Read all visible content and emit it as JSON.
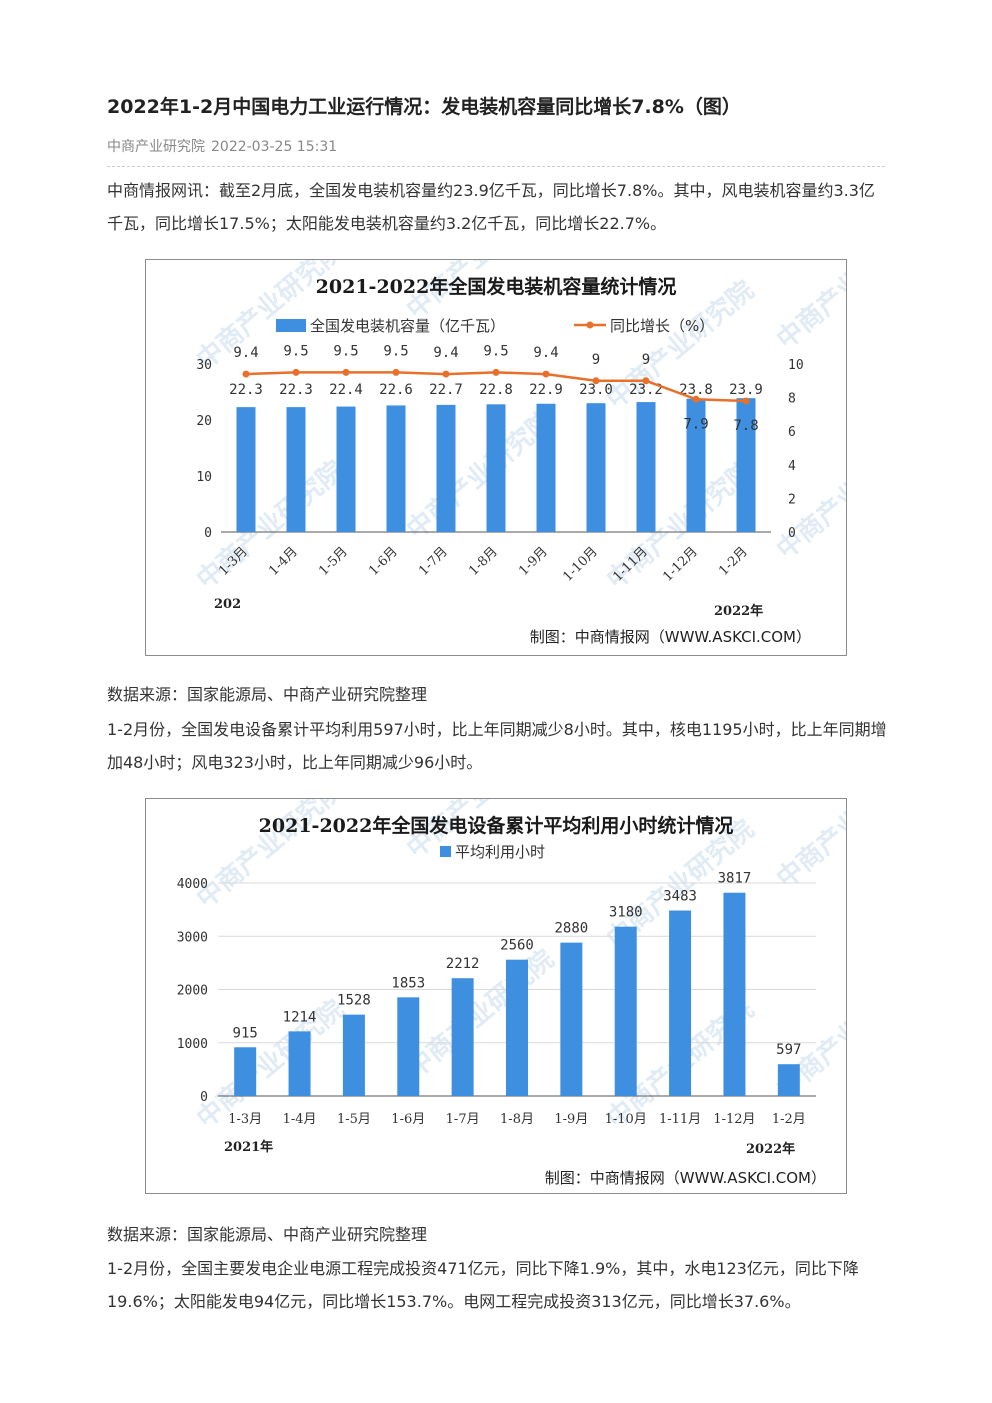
{
  "article": {
    "title": "2022年1-2月中国电力工业运行情况：发电装机容量同比增长7.8%（图）",
    "source": "中商产业研究院",
    "datetime": "2022-03-25 15:31",
    "paragraph1": "中商情报网讯：截至2月底，全国发电装机容量约23.9亿千瓦，同比增长7.8%。其中，风电装机容量约3.3亿千瓦，同比增长17.5%；太阳能发电装机容量约3.2亿千瓦，同比增长22.7%。",
    "source_note1": "数据来源：国家能源局、中商产业研究院整理",
    "paragraph2": "1-2月份，全国发电设备累计平均利用597小时，比上年同期减少8小时。其中，核电1195小时，比上年同期增加48小时；风电323小时，比上年同期减少96小时。",
    "source_note2": "数据来源：国家能源局、中商产业研究院整理",
    "paragraph3": "1-2月份，全国主要发电企业电源工程完成投资471亿元，同比下降1.9%，其中，水电123亿元，同比下降19.6%；太阳能发电94亿元，同比增长153.7%。电网工程完成投资313亿元，同比增长37.6%。"
  },
  "watermark": "中商产业研究院",
  "colors": {
    "bar": "#3e8fe0",
    "line": "#e8702a",
    "grid": "#d9d9d9"
  },
  "chart_data": [
    {
      "type": "bar",
      "title": "2021-2022年全国发电装机容量统计情况",
      "categories": [
        "1-3月",
        "1-4月",
        "1-5月",
        "1-6月",
        "1-7月",
        "1-8月",
        "1-9月",
        "1-10月",
        "1-11月",
        "1-12月",
        "1-2月"
      ],
      "series": [
        {
          "name": "全国发电装机容量（亿千瓦）",
          "type": "bar",
          "axis": "left",
          "values": [
            22.3,
            22.3,
            22.4,
            22.6,
            22.7,
            22.8,
            22.9,
            23.0,
            23.2,
            23.8,
            23.9
          ],
          "labels": [
            "22.3",
            "22.3",
            "22.4",
            "22.6",
            "22.7",
            "22.8",
            "22.9",
            "23.0",
            "23.2",
            "23.8",
            "23.9"
          ]
        },
        {
          "name": "同比增长（%）",
          "type": "line",
          "axis": "right",
          "values": [
            9.4,
            9.5,
            9.5,
            9.5,
            9.4,
            9.5,
            9.4,
            9,
            9,
            7.9,
            7.8
          ],
          "labels": [
            "9.4",
            "9.5",
            "9.5",
            "9.5",
            "9.4",
            "9.5",
            "9.4",
            "9",
            "9",
            "7.9",
            "7.8"
          ]
        }
      ],
      "y_left": {
        "ticks": [
          "0",
          "10",
          "20",
          "30"
        ],
        "lim": [
          0,
          30
        ]
      },
      "y_right": {
        "ticks": [
          "0",
          "2",
          "4",
          "6",
          "8",
          "10"
        ],
        "lim": [
          0,
          10
        ]
      },
      "year_labels": [
        "202",
        "2022年"
      ],
      "legend": "top",
      "grid": false,
      "credit": "制图：中商情报网（WWW.ASKCI.COM）"
    },
    {
      "type": "bar",
      "title": "2021-2022年全国发电设备累计平均利用小时统计情况",
      "categories": [
        "1-3月",
        "1-4月",
        "1-5月",
        "1-6月",
        "1-7月",
        "1-8月",
        "1-9月",
        "1-10月",
        "1-11月",
        "1-12月",
        "1-2月"
      ],
      "series": [
        {
          "name": "平均利用小时",
          "values": [
            915,
            1214,
            1528,
            1853,
            2212,
            2560,
            2880,
            3180,
            3483,
            3817,
            597
          ],
          "labels": [
            "915",
            "1214",
            "1528",
            "1853",
            "2212",
            "2560",
            "2880",
            "3180",
            "3483",
            "3817",
            "597"
          ]
        }
      ],
      "y": {
        "ticks": [
          "0",
          "1000",
          "2000",
          "3000",
          "4000"
        ],
        "lim": [
          0,
          4000
        ]
      },
      "year_labels": [
        "2021年",
        "2022年"
      ],
      "legend": "top",
      "grid": true,
      "credit": "制图：中商情报网（WWW.ASKCI.COM）"
    }
  ]
}
